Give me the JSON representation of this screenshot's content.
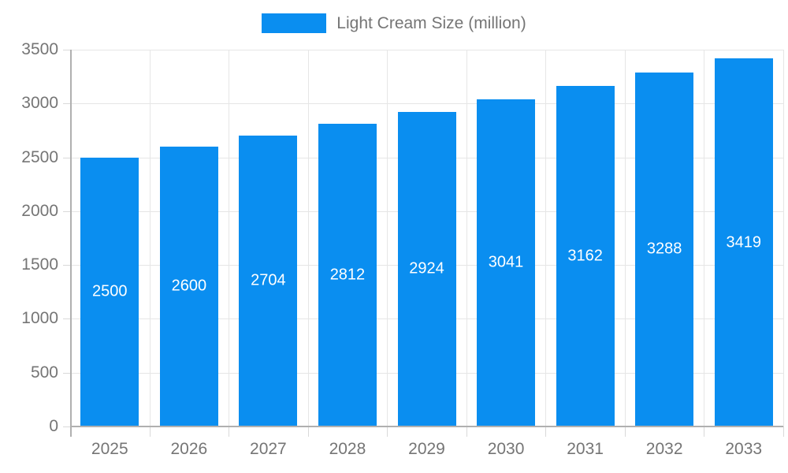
{
  "chart_data": {
    "type": "bar",
    "title": "",
    "legend": "Light Cream Size (million)",
    "legend_position": "top-center",
    "categories": [
      "2025",
      "2026",
      "2027",
      "2028",
      "2029",
      "2030",
      "2031",
      "2032",
      "2033"
    ],
    "series": [
      {
        "name": "Light Cream Size (million)",
        "values": [
          2500,
          2600,
          2704,
          2812,
          2924,
          3041,
          3162,
          3288,
          3419
        ]
      }
    ],
    "xlabel": "",
    "ylabel": "",
    "ylim": [
      0,
      3500
    ],
    "ytick_step": 500,
    "yticks": [
      0,
      500,
      1000,
      1500,
      2000,
      2500,
      3000,
      3500
    ],
    "grid": true,
    "value_labels": "inside-center",
    "colors": {
      "bar": "#0A8EF0",
      "grid": "#E6E6E6",
      "axis": "#B0B0B0",
      "tick": "#D9D9D9",
      "axis_text": "#757575",
      "value_text": "#FFFFFF",
      "background": "#FFFFFF"
    }
  }
}
